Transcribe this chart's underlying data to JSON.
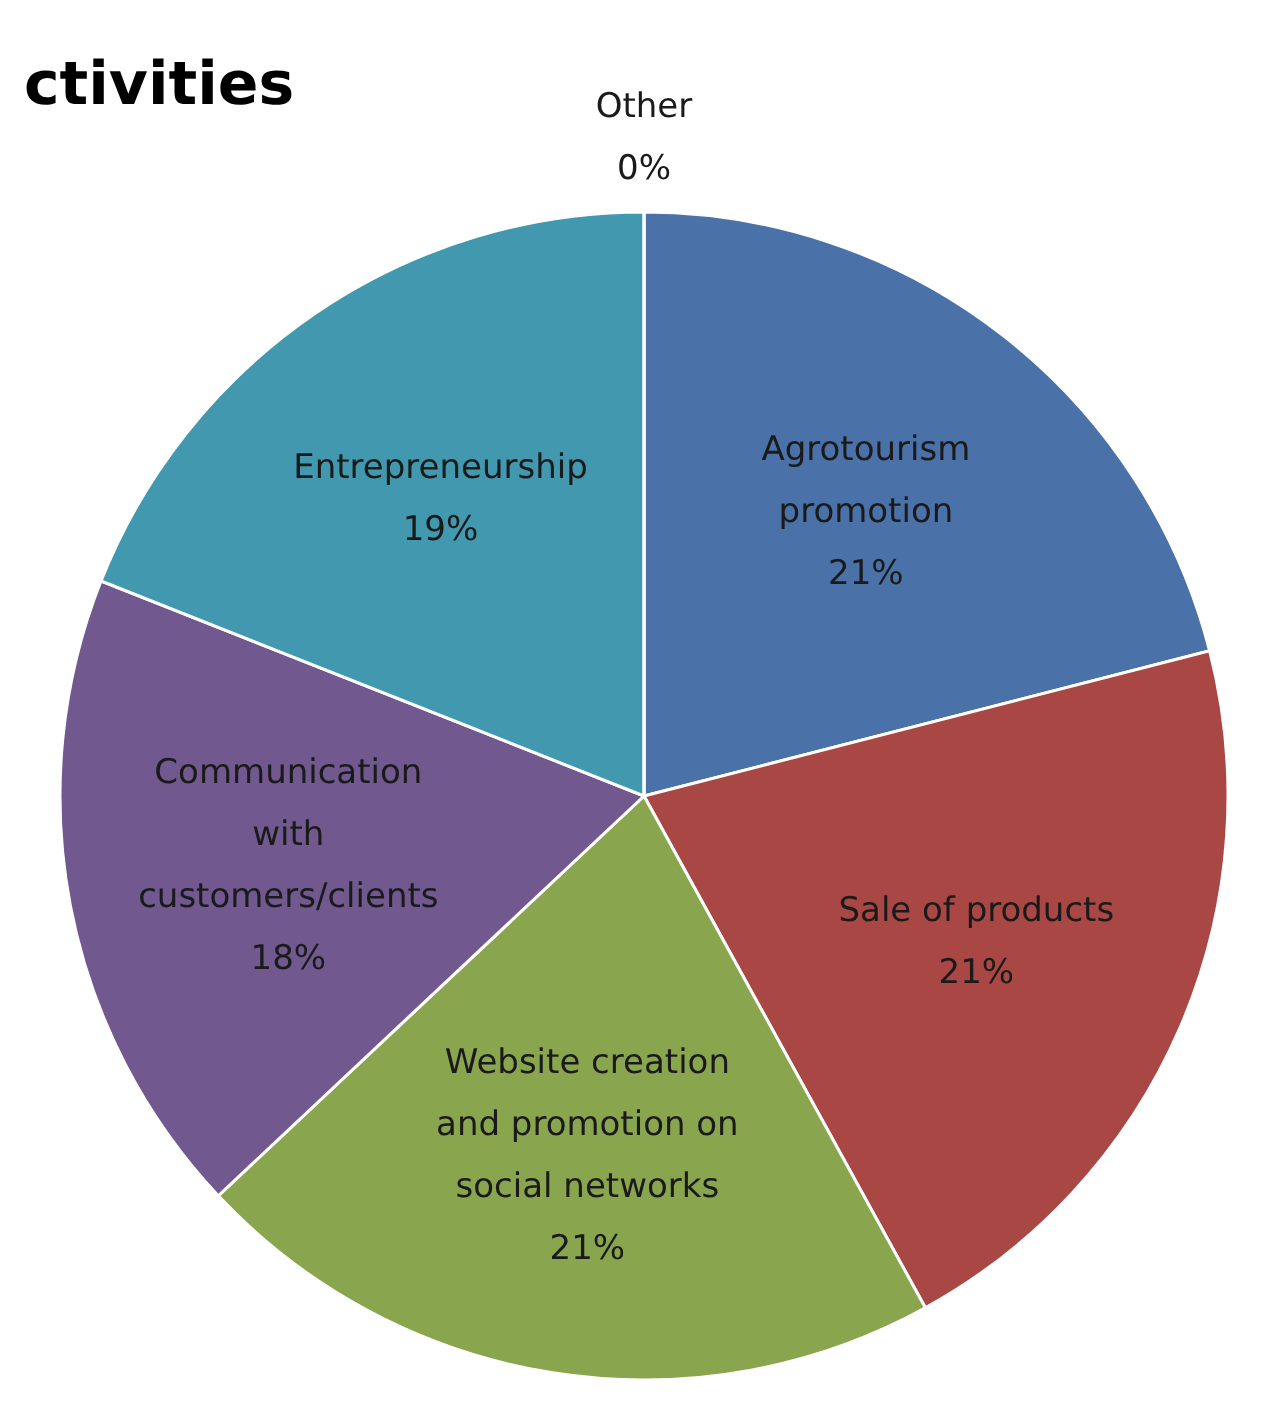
{
  "chart_data": {
    "type": "pie",
    "title": "ctivities",
    "categories": [
      "Agrotourism promotion",
      "Sale of products",
      "Website creation and promotion on social networks",
      "Communication with customers/clients",
      "Entrepreneurship",
      "Other"
    ],
    "values": [
      21,
      21,
      21,
      18,
      19,
      0
    ],
    "value_labels": [
      "21%",
      "21%",
      "21%",
      "18%",
      "19%",
      "0%"
    ],
    "colors": [
      "#4a72a8",
      "#a94744",
      "#89a54e",
      "#71588f",
      "#4198af",
      "#db843d"
    ]
  }
}
